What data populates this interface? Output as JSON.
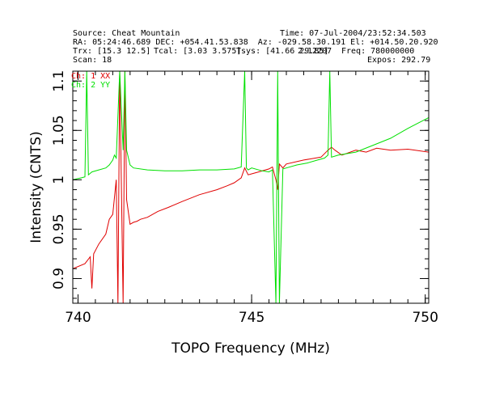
{
  "header": {
    "source": "Source: Cheat Mountain",
    "time": "Time: 07-Jul-2004/23:52:34.503",
    "ra_dec_az_el": "RA: 05:24:46.689 DEC: +054.41.53.838  Az: -029.58.30.191 El: +014.50.20.920",
    "trx": "Trx: [15.3 12.5]",
    "tcal": "Tcal: [3.03 3.575]",
    "tsys": "Tsys: [41.66 29.85]",
    "overlap": "2.12207",
    "freq": "Freq: 780000000",
    "scan": "Scan: 18",
    "expos": "Expos: 292.79"
  },
  "chart_data": {
    "type": "line",
    "title": "",
    "xlabel": "TOPO Frequency (MHz)",
    "ylabel": "Intensity (CNTS)",
    "xlim": [
      739.85,
      750.1
    ],
    "ylim": [
      0.875,
      1.11
    ],
    "x_ticks": [
      740,
      745,
      750
    ],
    "x_minor_step": 0.5,
    "y_ticks": [
      0.9,
      0.95,
      1,
      1.05,
      1.1
    ],
    "y_minor_step": 0.01,
    "grid": false,
    "legend_position": "top-left",
    "series": [
      {
        "name": "Ch: 1 XX",
        "color": "#e00000",
        "x": [
          739.85,
          740.2,
          740.35,
          740.4,
          740.45,
          740.6,
          740.8,
          740.9,
          741.0,
          741.1,
          741.15,
          741.2,
          741.3,
          741.35,
          741.4,
          741.5,
          741.6,
          741.7,
          741.8,
          742.0,
          742.3,
          742.6,
          743.0,
          743.5,
          744.0,
          744.3,
          744.5,
          744.7,
          744.8,
          744.9,
          745.0,
          745.2,
          745.5,
          745.6,
          745.7,
          745.75,
          745.8,
          745.9,
          746.0,
          746.5,
          747.0,
          747.2,
          747.3,
          747.4,
          747.6,
          748.0,
          748.3,
          748.6,
          749.0,
          749.5,
          750.1
        ],
        "y": [
          0.91,
          0.915,
          0.922,
          0.89,
          0.925,
          0.935,
          0.945,
          0.96,
          0.965,
          1.0,
          0.875,
          1.11,
          0.875,
          1.11,
          0.98,
          0.955,
          0.957,
          0.958,
          0.96,
          0.962,
          0.968,
          0.972,
          0.978,
          0.985,
          0.99,
          0.994,
          0.997,
          1.002,
          1.012,
          1.005,
          1.006,
          1.008,
          1.011,
          1.013,
          1.0,
          0.99,
          1.016,
          1.012,
          1.016,
          1.02,
          1.023,
          1.03,
          1.033,
          1.03,
          1.025,
          1.03,
          1.028,
          1.032,
          1.03,
          1.031,
          1.028
        ]
      },
      {
        "name": "Ch: 2 YY",
        "color": "#00e000",
        "x": [
          739.85,
          740.1,
          740.2,
          740.25,
          740.3,
          740.4,
          740.6,
          740.8,
          740.9,
          741.0,
          741.05,
          741.1,
          741.2,
          741.3,
          741.35,
          741.4,
          741.5,
          741.6,
          742.0,
          742.5,
          743.0,
          743.5,
          744.0,
          744.5,
          744.7,
          744.8,
          744.85,
          744.9,
          745.0,
          745.3,
          745.5,
          745.6,
          745.7,
          745.75,
          745.8,
          745.9,
          746.0,
          746.3,
          746.6,
          746.9,
          747.1,
          747.2,
          747.25,
          747.3,
          747.5,
          748.0,
          748.5,
          749.0,
          749.5,
          750.1
        ],
        "y": [
          1.0,
          1.002,
          1.003,
          1.11,
          1.005,
          1.008,
          1.01,
          1.012,
          1.015,
          1.02,
          1.025,
          1.022,
          1.11,
          1.03,
          1.11,
          1.03,
          1.015,
          1.012,
          1.01,
          1.009,
          1.009,
          1.01,
          1.01,
          1.011,
          1.013,
          1.11,
          1.012,
          1.01,
          1.012,
          1.009,
          1.008,
          1.01,
          0.875,
          1.11,
          0.875,
          1.011,
          1.012,
          1.015,
          1.017,
          1.02,
          1.022,
          1.025,
          1.11,
          1.023,
          1.025,
          1.028,
          1.035,
          1.042,
          1.052,
          1.063
        ]
      }
    ]
  }
}
